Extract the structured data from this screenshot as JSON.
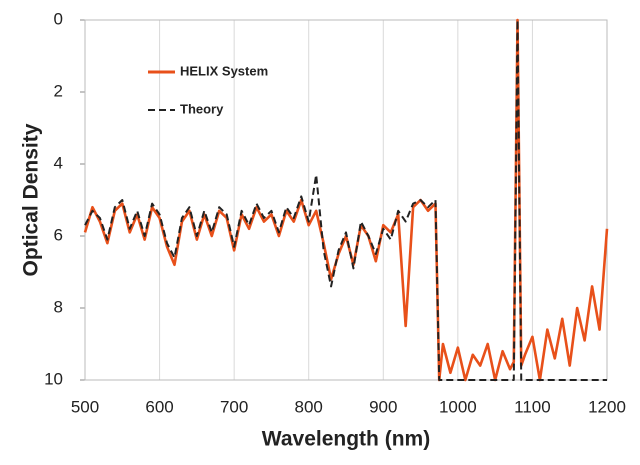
{
  "chart_data": {
    "type": "line",
    "x_label": "Wavelength (nm)",
    "y_label": "Optical Density",
    "x": [
      500,
      510,
      520,
      530,
      540,
      550,
      560,
      570,
      580,
      590,
      600,
      610,
      620,
      630,
      640,
      650,
      660,
      670,
      680,
      690,
      700,
      710,
      720,
      730,
      740,
      750,
      760,
      770,
      780,
      790,
      800,
      810,
      820,
      830,
      840,
      850,
      860,
      870,
      880,
      890,
      900,
      910,
      920,
      930,
      940,
      950,
      960,
      970,
      975,
      980,
      990,
      1000,
      1010,
      1020,
      1030,
      1040,
      1050,
      1060,
      1070,
      1075,
      1080,
      1085,
      1090,
      1100,
      1110,
      1120,
      1130,
      1140,
      1150,
      1160,
      1170,
      1180,
      1190,
      1200
    ],
    "series": [
      {
        "name": "HELIX System",
        "color": "#e8501a",
        "dash": false,
        "values": [
          5.9,
          5.2,
          5.6,
          6.2,
          5.3,
          5.1,
          5.9,
          5.4,
          6.1,
          5.2,
          5.5,
          6.3,
          6.8,
          5.6,
          5.3,
          6.1,
          5.4,
          6.0,
          5.3,
          5.5,
          6.4,
          5.4,
          5.8,
          5.2,
          5.6,
          5.4,
          6.0,
          5.3,
          5.6,
          5.0,
          5.7,
          5.3,
          6.2,
          7.2,
          6.5,
          6.0,
          6.8,
          5.7,
          6.0,
          6.7,
          5.7,
          5.9,
          5.4,
          8.5,
          5.2,
          5.0,
          5.3,
          5.1,
          10,
          9.0,
          9.8,
          9.1,
          10,
          9.3,
          9.6,
          9.0,
          10,
          9.2,
          9.7,
          9.5,
          0,
          9.6,
          9.3,
          8.8,
          10,
          8.6,
          9.4,
          8.3,
          9.6,
          8.0,
          8.9,
          7.4,
          8.6,
          5.8
        ]
      },
      {
        "name": "Theory",
        "color": "#222222",
        "dash": true,
        "values": [
          5.7,
          5.3,
          5.5,
          6.1,
          5.2,
          5.0,
          5.8,
          5.3,
          6.0,
          5.1,
          5.4,
          6.2,
          6.6,
          5.5,
          5.2,
          6.0,
          5.3,
          5.9,
          5.2,
          5.4,
          6.3,
          5.3,
          5.7,
          5.1,
          5.5,
          5.3,
          5.9,
          5.2,
          5.5,
          4.9,
          5.6,
          4.3,
          6.4,
          7.4,
          6.4,
          5.9,
          6.9,
          5.6,
          6.0,
          6.5,
          5.8,
          6.1,
          5.3,
          5.6,
          5.1,
          5.0,
          5.2,
          5.0,
          10,
          10,
          10,
          10,
          10,
          10,
          10,
          10,
          10,
          10,
          10,
          10,
          0,
          10,
          10,
          10,
          10,
          10,
          10,
          10,
          10,
          10,
          10,
          10,
          10,
          10
        ]
      }
    ],
    "xlim": [
      500,
      1200
    ],
    "xticks": [
      500,
      600,
      700,
      800,
      900,
      1000,
      1100,
      1200
    ],
    "ylim": [
      10,
      0
    ],
    "yticks": [
      0,
      2,
      4,
      6,
      8,
      10
    ],
    "grid": true,
    "legend": "upper left"
  }
}
